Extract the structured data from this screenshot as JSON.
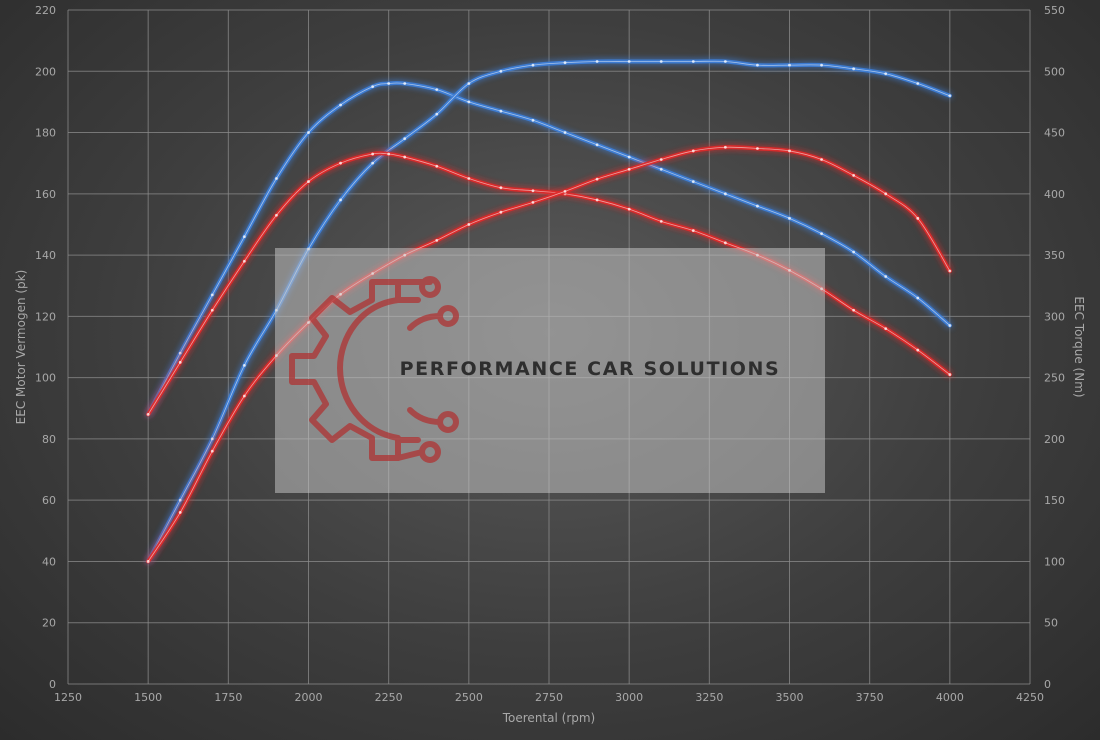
{
  "chart_data": {
    "type": "line",
    "title": "",
    "xlabel": "Toerental (rpm)",
    "ylabel_left": "EEC Motor Vermogen (pk)",
    "ylabel_right": "EEC Torque (Nm)",
    "xlim": [
      1250,
      4250
    ],
    "ylim_left": [
      0,
      220
    ],
    "ylim_right": [
      0,
      550
    ],
    "x_ticks": [
      "1250",
      "1500",
      "1750",
      "2000",
      "2250",
      "2500",
      "2750",
      "3000",
      "3250",
      "3500",
      "3750",
      "4000",
      "4250"
    ],
    "y_left_ticks": [
      "0",
      "20",
      "40",
      "60",
      "80",
      "100",
      "120",
      "140",
      "160",
      "180",
      "200",
      "220"
    ],
    "y_right_ticks": [
      "0",
      "50",
      "100",
      "150",
      "200",
      "250",
      "300",
      "350",
      "400",
      "450",
      "500",
      "550"
    ],
    "grid": true,
    "series": [
      {
        "color": "#3d7fd9",
        "axis": "left",
        "x": [
          1500,
          1600,
          1700,
          1800,
          1900,
          2000,
          2100,
          2200,
          2250,
          2300,
          2400,
          2500,
          2600,
          2700,
          2800,
          2900,
          3000,
          3100,
          3200,
          3300,
          3400,
          3500,
          3600,
          3700,
          3800,
          3900,
          4000
        ],
        "values": [
          88,
          108,
          127,
          146,
          165,
          180,
          189,
          195,
          196,
          196,
          194,
          190,
          187,
          184,
          180,
          176,
          172,
          168,
          164,
          160,
          156,
          152,
          147,
          141,
          133,
          126,
          117
        ]
      },
      {
        "color": "#3d7fd9",
        "axis": "right",
        "x": [
          1500,
          1600,
          1700,
          1800,
          1900,
          2000,
          2100,
          2200,
          2300,
          2400,
          2500,
          2600,
          2700,
          2800,
          2900,
          3000,
          3100,
          3200,
          3300,
          3400,
          3500,
          3600,
          3700,
          3800,
          3900,
          4000
        ],
        "values": [
          100,
          150,
          200,
          260,
          305,
          355,
          395,
          425,
          445,
          465,
          490,
          500,
          505,
          507,
          508,
          508,
          508,
          508,
          508,
          505,
          505,
          505,
          502,
          498,
          490,
          480
        ]
      },
      {
        "color": "#e02a2a",
        "axis": "left",
        "x": [
          1500,
          1600,
          1700,
          1800,
          1900,
          2000,
          2100,
          2200,
          2250,
          2300,
          2400,
          2500,
          2600,
          2700,
          2800,
          2900,
          3000,
          3100,
          3200,
          3300,
          3400,
          3500,
          3600,
          3700,
          3800,
          3900,
          4000
        ],
        "values": [
          88,
          105,
          122,
          138,
          153,
          164,
          170,
          173,
          173,
          172,
          169,
          165,
          162,
          161,
          160,
          158,
          155,
          151,
          148,
          144,
          140,
          135,
          129,
          122,
          116,
          109,
          101
        ]
      },
      {
        "color": "#e02a2a",
        "axis": "right",
        "x": [
          1500,
          1600,
          1700,
          1800,
          1900,
          2000,
          2100,
          2200,
          2300,
          2400,
          2500,
          2600,
          2700,
          2800,
          2900,
          3000,
          3100,
          3200,
          3300,
          3400,
          3500,
          3600,
          3700,
          3800,
          3900,
          4000
        ],
        "values": [
          100,
          140,
          190,
          235,
          268,
          295,
          318,
          335,
          350,
          362,
          375,
          385,
          393,
          402,
          412,
          420,
          428,
          435,
          438,
          437,
          435,
          428,
          415,
          400,
          380,
          337
        ]
      }
    ]
  },
  "watermark": {
    "text": "PERFORMANCE CAR SOLUTIONS",
    "icon": "gear-circuit-logo"
  }
}
